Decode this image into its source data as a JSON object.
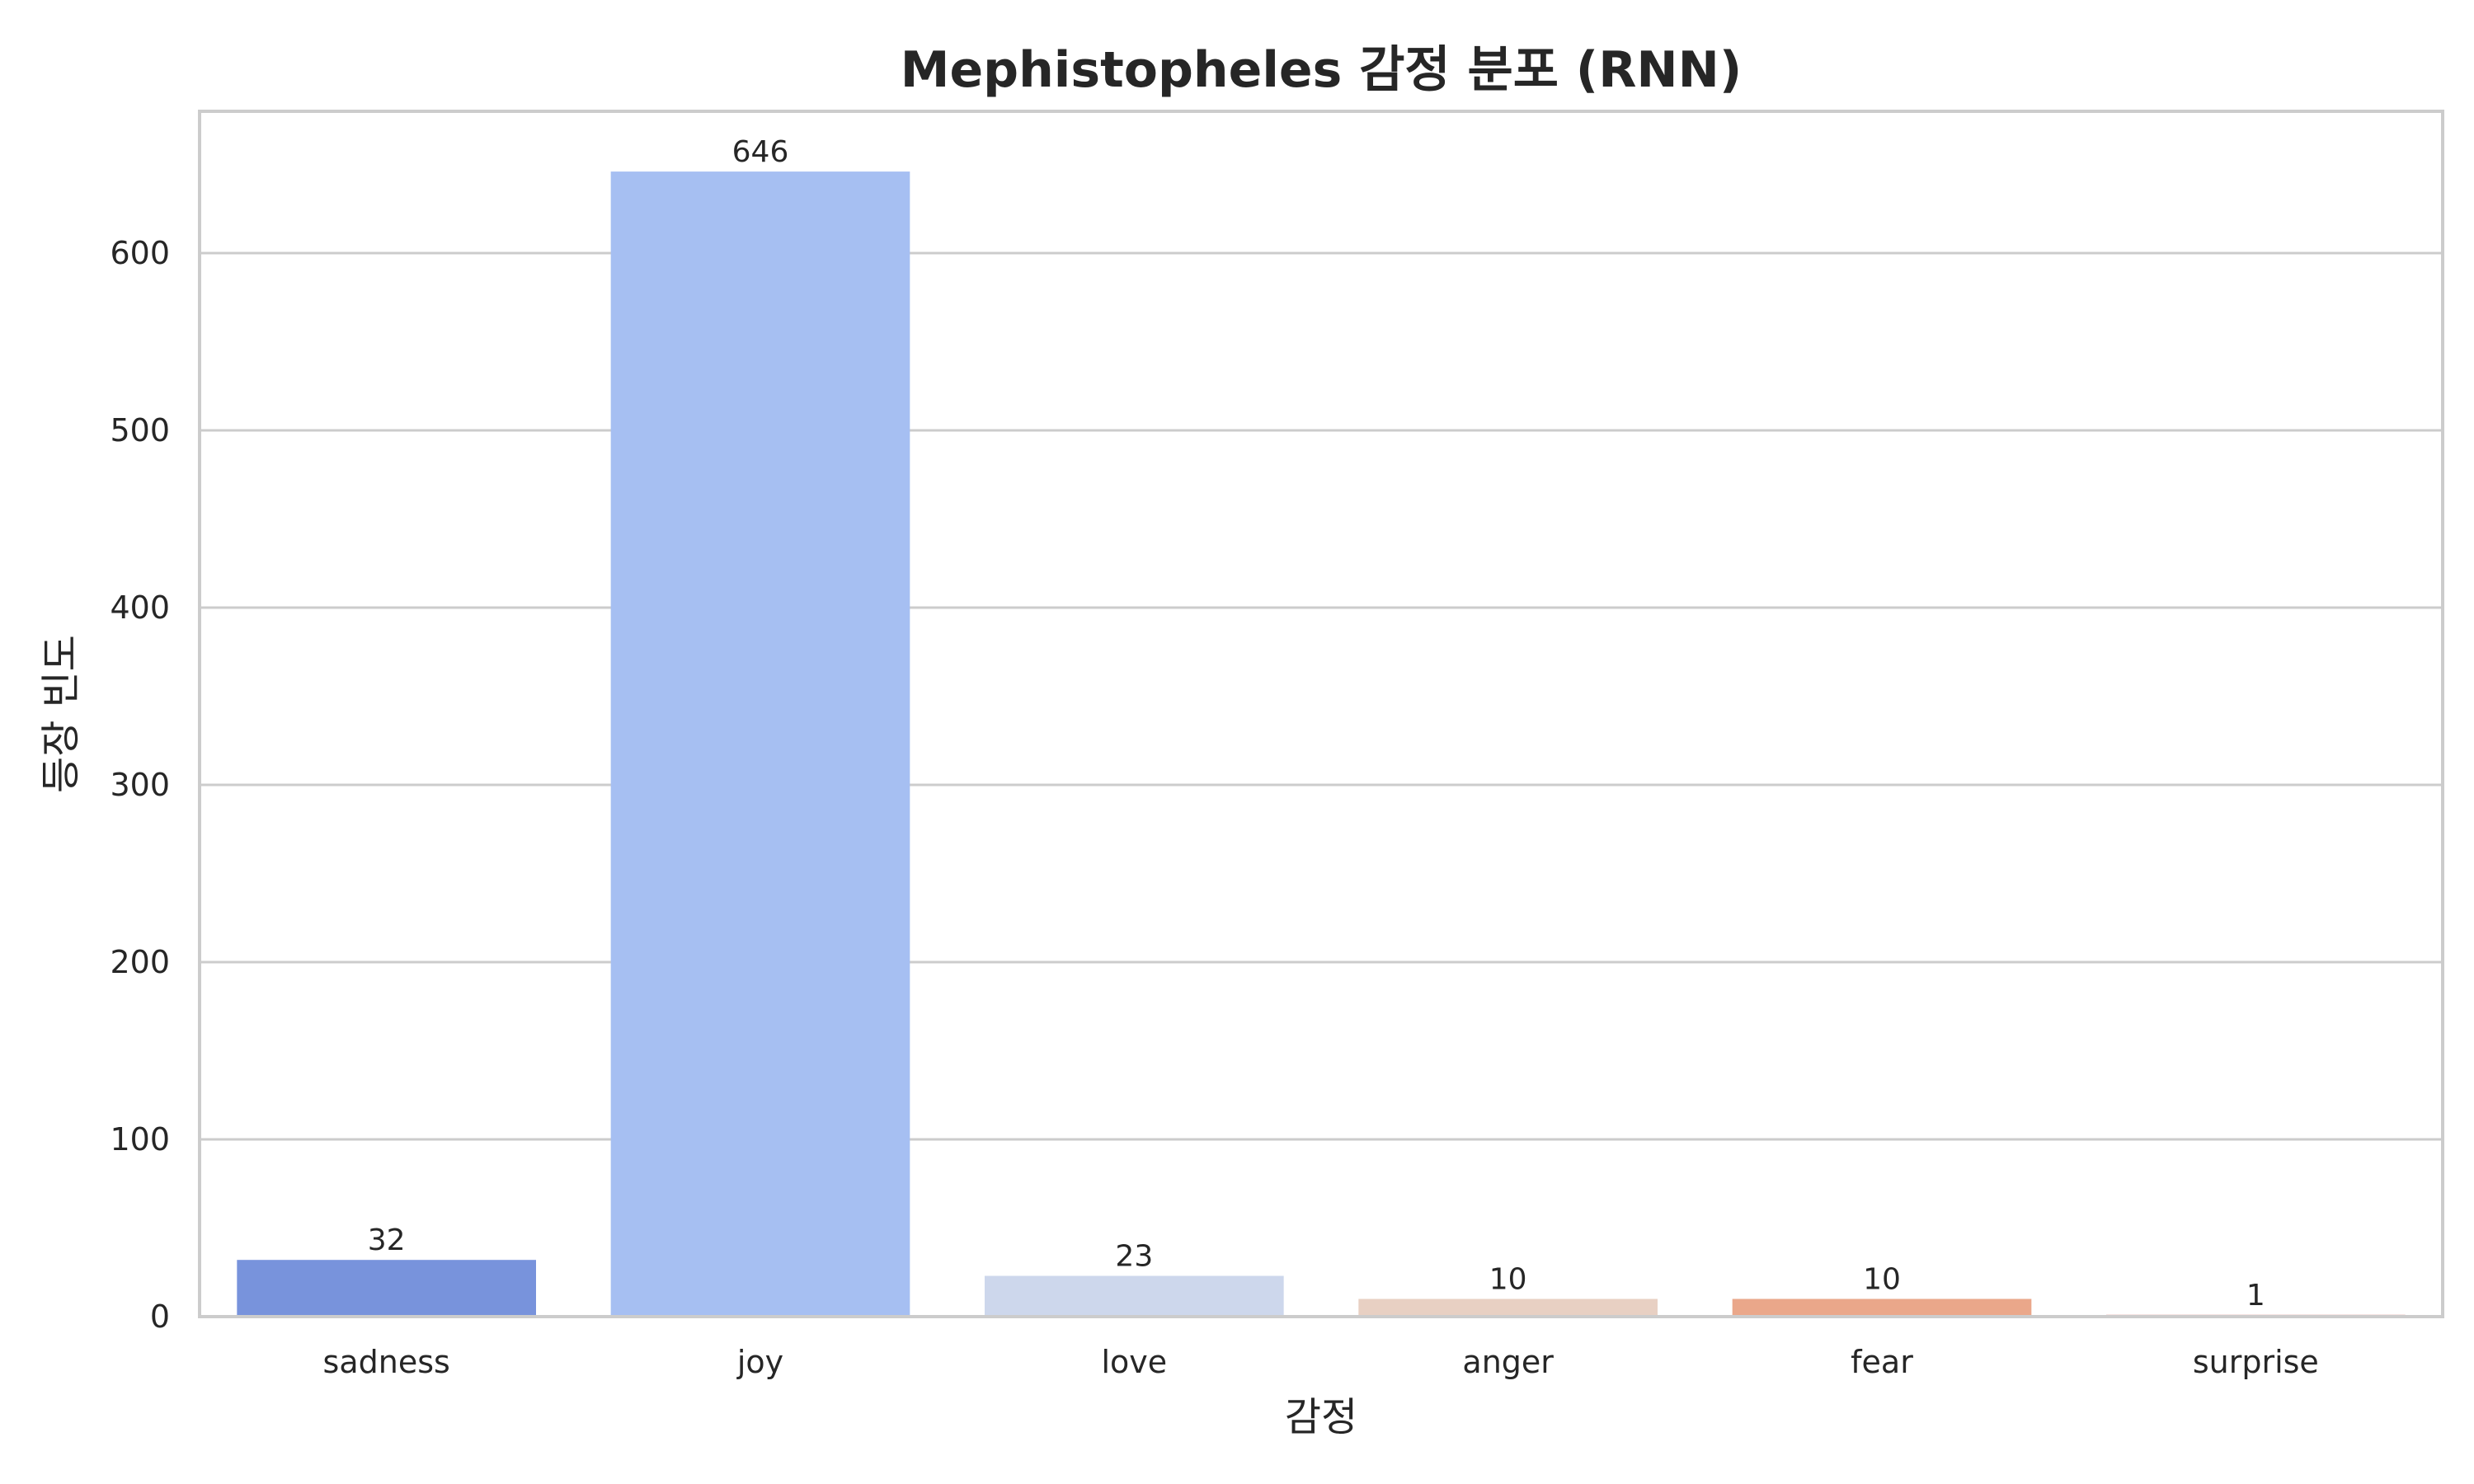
{
  "chart_data": {
    "type": "bar",
    "title": "Mephistopheles 감정 분포 (RNN)",
    "xlabel": "감정",
    "ylabel": "등장 빈도",
    "categories": [
      "sadness",
      "joy",
      "love",
      "anger",
      "fear",
      "surprise"
    ],
    "values": [
      32,
      646,
      23,
      10,
      10,
      1
    ],
    "colors": [
      "#7893dc",
      "#a6bff2",
      "#cdd7ec",
      "#e8d0c3",
      "#eaa78a",
      "#c44e44"
    ],
    "ylim": [
      0,
      680
    ],
    "yticks": [
      0,
      100,
      200,
      300,
      400,
      500,
      600
    ],
    "grid": true,
    "data_labels": true
  }
}
